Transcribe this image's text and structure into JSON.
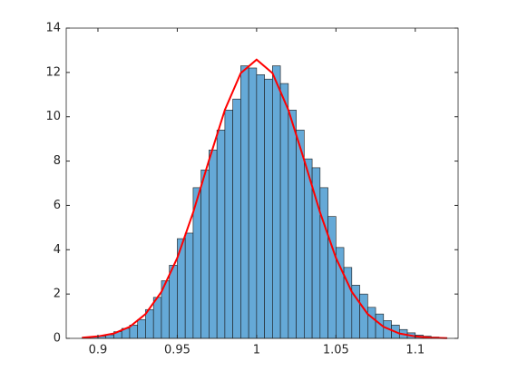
{
  "chart_data": {
    "type": "histogram",
    "bins": [
      0.89,
      0.895,
      0.9,
      0.905,
      0.91,
      0.915,
      0.92,
      0.925,
      0.93,
      0.935,
      0.94,
      0.945,
      0.95,
      0.955,
      0.96,
      0.965,
      0.97,
      0.975,
      0.98,
      0.985,
      0.99,
      0.995,
      1.0,
      1.005,
      1.01,
      1.015,
      1.02,
      1.025,
      1.03,
      1.035,
      1.04,
      1.045,
      1.05,
      1.055,
      1.06,
      1.065,
      1.07,
      1.075,
      1.08,
      1.085,
      1.09,
      1.095,
      1.1,
      1.105,
      1.11,
      1.115,
      1.12
    ],
    "values": [
      0.04,
      0.08,
      0.1,
      0.16,
      0.3,
      0.45,
      0.6,
      0.85,
      1.3,
      1.85,
      2.6,
      3.3,
      4.5,
      4.75,
      6.8,
      7.6,
      8.5,
      9.4,
      10.3,
      10.8,
      12.3,
      12.2,
      11.9,
      11.7,
      12.3,
      11.5,
      10.3,
      9.4,
      8.1,
      7.7,
      6.8,
      5.5,
      4.1,
      3.2,
      2.4,
      2.0,
      1.4,
      1.1,
      0.8,
      0.6,
      0.4,
      0.25,
      0.15,
      0.1,
      0.06,
      0.03
    ],
    "color": "#65a9d7",
    "fit": {
      "color": "#ff0000",
      "x": [
        0.89,
        0.9,
        0.91,
        0.92,
        0.93,
        0.94,
        0.95,
        0.96,
        0.97,
        0.98,
        0.99,
        1.0,
        1.01,
        1.02,
        1.03,
        1.04,
        1.05,
        1.06,
        1.07,
        1.08,
        1.09,
        1.1,
        1.11,
        1.12
      ],
      "values": [
        0.03,
        0.09,
        0.22,
        0.52,
        1.1,
        2.1,
        3.63,
        5.68,
        8.04,
        10.31,
        11.97,
        12.58,
        11.97,
        10.31,
        8.04,
        5.68,
        3.63,
        2.1,
        1.1,
        0.52,
        0.22,
        0.09,
        0.03,
        0.01
      ]
    },
    "xlim": [
      0.88,
      1.127
    ],
    "ylim": [
      0,
      14
    ],
    "xticks": [
      0.9,
      0.95,
      1,
      1.05,
      1.1
    ],
    "yticks": [
      0,
      2,
      4,
      6,
      8,
      10,
      12,
      14
    ]
  }
}
